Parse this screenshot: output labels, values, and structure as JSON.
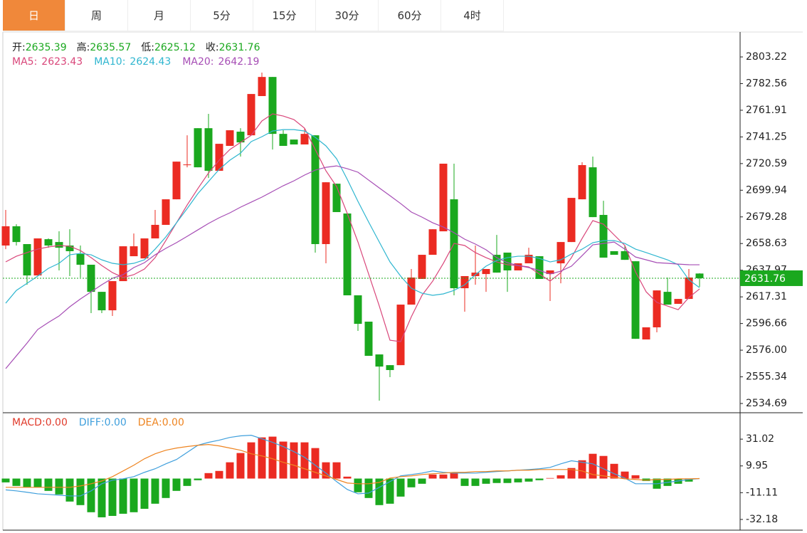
{
  "tabs": [
    "日",
    "周",
    "月",
    "5分",
    "15分",
    "30分",
    "60分",
    "4时"
  ],
  "active_tab": 0,
  "chart_data": [
    {
      "type": "candlestick",
      "ohlc_labels": [
        "开:",
        "高:",
        "低:",
        "收:"
      ],
      "up_color": "#eb2b22",
      "down_color": "#1aa81e",
      "label_suffix": ":",
      "open": [
        2657.1,
        2672.0,
        2658.2,
        2633.9,
        2662.0,
        2659.8,
        2657.1,
        2650.5,
        2642.2,
        2621.2,
        2606.9,
        2629.5,
        2648.8,
        2647.1,
        2662.6,
        2673.1,
        2692.9,
        2719.4,
        2748.0,
        2748.0,
        2715.0,
        2734.3,
        2745.3,
        2742.5,
        2772.9,
        2787.7,
        2743.6,
        2739.2,
        2735.4,
        2742.5,
        2658.2,
        2705.0,
        2681.9,
        2618.5,
        2598.1,
        2572.7,
        2564.4,
        2564.4,
        2611.3,
        2631.2,
        2649.9,
        2668.1,
        2692.9,
        2624.0,
        2633.4,
        2635.0,
        2649.9,
        2651.6,
        2637.8,
        2643.3,
        2648.8,
        2635.0,
        2643.3,
        2659.8,
        2692.9,
        2717.7,
        2680.8,
        2652.7,
        2652.7,
        2644.9,
        2584.3,
        2593.7,
        2621.2,
        2611.9,
        2615.7,
        2635.39
      ],
      "high": [
        2684.7,
        2673.6,
        2658.2,
        2662.6,
        2662.6,
        2668.1,
        2669.7,
        2657.1,
        2642.2,
        2621.2,
        2629.5,
        2656.5,
        2666.4,
        2662.6,
        2684.7,
        2692.9,
        2722.1,
        2742.5,
        2748.0,
        2759.1,
        2735.9,
        2746.4,
        2748.0,
        2774.5,
        2791.1,
        2787.7,
        2746.4,
        2739.2,
        2748.0,
        2742.5,
        2706.1,
        2705.0,
        2681.9,
        2618.5,
        2598.1,
        2572.7,
        2564.4,
        2611.3,
        2638.9,
        2649.9,
        2669.7,
        2720.5,
        2720.5,
        2633.4,
        2657.1,
        2638.9,
        2665.3,
        2651.6,
        2643.3,
        2655.4,
        2648.8,
        2637.8,
        2659.8,
        2694.0,
        2721.6,
        2726.0,
        2691.8,
        2652.7,
        2657.1,
        2644.9,
        2593.7,
        2622.3,
        2632.3,
        2615.7,
        2638.9,
        2635.57
      ],
      "low": [
        2654.3,
        2657.1,
        2626.7,
        2633.9,
        2655.4,
        2637.8,
        2633.4,
        2632.3,
        2604.7,
        2604.7,
        2602.5,
        2629.5,
        2648.8,
        2647.1,
        2662.6,
        2673.1,
        2692.9,
        2717.7,
        2717.7,
        2709.4,
        2715.0,
        2734.3,
        2726.0,
        2742.5,
        2772.9,
        2731.5,
        2734.3,
        2735.4,
        2735.4,
        2651.6,
        2643.3,
        2683.0,
        2618.5,
        2590.9,
        2571.6,
        2536.9,
        2555.1,
        2564.4,
        2611.3,
        2631.2,
        2649.9,
        2668.1,
        2618.5,
        2605.8,
        2626.7,
        2621.2,
        2636.1,
        2621.2,
        2637.8,
        2643.3,
        2631.2,
        2614.1,
        2627.8,
        2659.8,
        2692.9,
        2679.1,
        2647.7,
        2649.9,
        2646.0,
        2584.8,
        2584.3,
        2589.8,
        2611.3,
        2611.9,
        2615.7,
        2625.12
      ],
      "close": [
        2672.0,
        2659.8,
        2633.9,
        2662.6,
        2657.1,
        2655.4,
        2652.7,
        2642.2,
        2621.2,
        2606.9,
        2629.5,
        2656.5,
        2656.5,
        2662.6,
        2673.1,
        2692.9,
        2722.1,
        2719.9,
        2717.7,
        2715.0,
        2735.9,
        2746.4,
        2737.0,
        2774.5,
        2787.7,
        2743.6,
        2734.3,
        2735.4,
        2743.6,
        2658.2,
        2706.1,
        2683.0,
        2618.5,
        2596.4,
        2571.6,
        2563.3,
        2560.6,
        2611.3,
        2632.3,
        2649.9,
        2669.7,
        2720.5,
        2624.0,
        2633.4,
        2636.1,
        2638.9,
        2636.1,
        2637.8,
        2643.3,
        2649.9,
        2631.2,
        2637.8,
        2659.8,
        2694.0,
        2719.4,
        2679.1,
        2647.7,
        2649.9,
        2646.0,
        2584.8,
        2593.7,
        2622.3,
        2611.3,
        2615.7,
        2632.3,
        2631.76
      ],
      "series": [
        {
          "name": "MA5",
          "color": "#d9467a",
          "values": [
            2644.4,
            2648.8,
            2651.6,
            2654.3,
            2656.0,
            2657.1,
            2656.5,
            2653.2,
            2647.7,
            2641.6,
            2636.1,
            2632.3,
            2634.5,
            2638.9,
            2647.7,
            2660.9,
            2674.7,
            2688.5,
            2701.2,
            2713.3,
            2723.2,
            2731.5,
            2737.0,
            2742.5,
            2753.6,
            2759.1,
            2757.4,
            2754.7,
            2748.0,
            2731.5,
            2715.0,
            2702.8,
            2681.9,
            2659.8,
            2635.0,
            2610.2,
            2583.7,
            2582.6,
            2601.9,
            2618.5,
            2629.5,
            2643.3,
            2658.7,
            2657.1,
            2651.6,
            2647.7,
            2644.4,
            2642.2,
            2641.6,
            2640.5,
            2635.0,
            2629.5,
            2636.1,
            2647.7,
            2662.6,
            2676.4,
            2673.6,
            2665.3,
            2657.1,
            2636.7,
            2621.2,
            2613.0,
            2610.2,
            2607.4,
            2616.8,
            2623.43
          ]
        },
        {
          "name": "MA10",
          "color": "#2fb6d0",
          "values": [
            2612.4,
            2622.3,
            2627.8,
            2633.4,
            2639.4,
            2643.3,
            2649.9,
            2651.0,
            2649.9,
            2646.0,
            2643.3,
            2642.2,
            2643.3,
            2646.0,
            2654.3,
            2663.7,
            2674.7,
            2685.7,
            2697.3,
            2706.7,
            2716.1,
            2723.2,
            2728.7,
            2737.6,
            2741.4,
            2745.8,
            2746.9,
            2746.9,
            2745.8,
            2740.9,
            2734.3,
            2724.3,
            2708.3,
            2691.3,
            2675.3,
            2659.8,
            2644.4,
            2633.4,
            2624.0,
            2620.1,
            2618.5,
            2619.6,
            2622.3,
            2626.7,
            2634.5,
            2641.1,
            2645.5,
            2647.7,
            2648.8,
            2648.8,
            2647.1,
            2644.4,
            2646.0,
            2650.5,
            2654.3,
            2659.3,
            2660.9,
            2660.9,
            2658.7,
            2654.3,
            2651.6,
            2648.8,
            2646.0,
            2642.2,
            2630.6,
            2624.43
          ]
        },
        {
          "name": "MA20",
          "color": "#a64db5",
          "values": [
            2561.7,
            2571.6,
            2581.5,
            2592.0,
            2597.5,
            2602.5,
            2609.6,
            2615.7,
            2621.2,
            2626.7,
            2631.7,
            2634.5,
            2640.0,
            2643.8,
            2649.9,
            2654.9,
            2659.3,
            2664.2,
            2669.2,
            2674.2,
            2678.6,
            2682.4,
            2686.8,
            2690.7,
            2694.6,
            2699.0,
            2703.4,
            2707.2,
            2711.7,
            2715.5,
            2717.7,
            2718.8,
            2716.6,
            2713.9,
            2707.8,
            2701.7,
            2695.7,
            2689.6,
            2683.0,
            2679.1,
            2674.7,
            2671.4,
            2667.0,
            2662.0,
            2658.2,
            2653.8,
            2647.7,
            2643.8,
            2641.6,
            2640.0,
            2637.8,
            2635.0,
            2637.2,
            2641.1,
            2649.3,
            2657.6,
            2658.7,
            2659.8,
            2654.3,
            2648.2,
            2646.0,
            2643.8,
            2643.3,
            2642.7,
            2642.2,
            2642.19
          ]
        }
      ],
      "ylim": [
        2527.52,
        2822.52
      ],
      "yticks": [
        2803.22,
        2782.56,
        2761.91,
        2741.25,
        2720.59,
        2699.94,
        2679.28,
        2658.63,
        2637.97,
        2617.31,
        2596.66,
        {
          "value": 2576,
          "label": "2576.00"
        },
        2555.34,
        2534.69
      ],
      "last_price_line": true
    },
    {
      "type": "macd",
      "label_suffix": ":",
      "up_color": "#eb2b22",
      "down_color": "#1aa81e",
      "bars": {
        "name": "MACD",
        "color": "#e03a2b",
        "current_label": "0.00",
        "values": [
          -3.0,
          -5.8,
          -6.9,
          -6.9,
          -9.7,
          -12.5,
          -18.1,
          -20.9,
          -26.5,
          -30.5,
          -29.4,
          -27.7,
          -26.5,
          -23.8,
          -19.8,
          -15.3,
          -9.7,
          -5.8,
          -1.3,
          4.3,
          6.0,
          12.8,
          20.1,
          28.5,
          32.4,
          33.0,
          29.1,
          28.5,
          28.5,
          24.0,
          12.8,
          12.8,
          1.5,
          -10.8,
          -15.3,
          -20.9,
          -19.8,
          -14.2,
          -6.9,
          -4.1,
          3.2,
          3.2,
          4.3,
          -5.8,
          -5.8,
          -4.1,
          -3.5,
          -3.5,
          -3.0,
          -2.4,
          -1.3,
          0.4,
          2.6,
          8.3,
          14.4,
          19.5,
          17.8,
          11.6,
          5.5,
          2.6,
          -1.9,
          -8.0,
          -5.8,
          -4.1,
          -2.4,
          0
        ]
      },
      "series": [
        {
          "name": "DIFF",
          "color": "#3f9fdc",
          "current_label": "0.00",
          "values": [
            -8.9,
            -9.7,
            -10.8,
            -12.0,
            -12.5,
            -13.1,
            -13.7,
            -13.7,
            -9.7,
            -4.1,
            -1.3,
            -0.2,
            1.5,
            4.9,
            7.7,
            11.6,
            15.0,
            20.6,
            26.2,
            28.5,
            30.2,
            32.4,
            33.6,
            34.1,
            31.3,
            28.5,
            25.2,
            21.2,
            16.7,
            10.5,
            4.3,
            -2.4,
            -8.6,
            -12.0,
            -11.4,
            -6.9,
            -2.4,
            2.1,
            3.2,
            4.3,
            6.0,
            4.9,
            4.3,
            4.3,
            4.3,
            4.9,
            5.5,
            6.0,
            6.6,
            7.1,
            7.7,
            8.8,
            11.6,
            14.0,
            12.8,
            11.6,
            7.7,
            3.8,
            0.4,
            -4.1,
            -4.1,
            -4.1,
            -3.0,
            -1.9,
            -0.7,
            0
          ]
        },
        {
          "name": "DEA",
          "color": "#ee8420",
          "current_label": "0.00",
          "values": [
            -6.9,
            -6.9,
            -6.9,
            -6.9,
            -6.9,
            -6.9,
            -6.9,
            -5.8,
            -4.1,
            -1.9,
            1.5,
            6.0,
            10.5,
            15.6,
            19.5,
            22.3,
            24.0,
            25.2,
            26.2,
            26.8,
            25.7,
            24.0,
            22.3,
            19.5,
            17.8,
            15.6,
            12.8,
            10.5,
            7.7,
            4.9,
            2.1,
            -0.7,
            -3.5,
            -4.1,
            -4.1,
            -3.0,
            0.4,
            1.5,
            2.1,
            3.2,
            3.8,
            4.3,
            4.9,
            4.9,
            5.5,
            5.5,
            6.0,
            6.0,
            6.6,
            6.6,
            7.1,
            7.1,
            7.1,
            7.1,
            6.0,
            3.2,
            2.1,
            1.0,
            -0.2,
            -0.7,
            -1.3,
            -0.7,
            -0.7,
            -0.2,
            -0.2,
            0
          ]
        }
      ],
      "ylim": [
        -40.61,
        50.69
      ],
      "yticks": [
        31.02,
        9.95,
        -11.11,
        -32.18
      ]
    }
  ]
}
